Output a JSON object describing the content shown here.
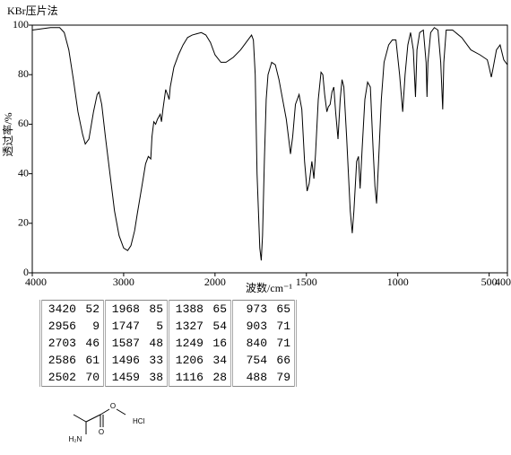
{
  "chart_data": {
    "type": "line",
    "title": "KBr压片法",
    "x_label": "波数/cm⁻¹",
    "y_label": "透过率/%",
    "xlim": [
      4000,
      400
    ],
    "ylim": [
      0,
      100
    ],
    "x_break": 2000,
    "grid": false,
    "color": "#000000",
    "xticks": [
      4000,
      3000,
      2000,
      1500,
      1000,
      500,
      400
    ],
    "yticks": [
      0,
      20,
      40,
      60,
      80,
      100
    ],
    "x": [
      4000,
      3900,
      3800,
      3700,
      3650,
      3600,
      3550,
      3500,
      3450,
      3420,
      3380,
      3330,
      3290,
      3270,
      3240,
      3200,
      3150,
      3100,
      3050,
      3000,
      2956,
      2920,
      2880,
      2850,
      2800,
      2760,
      2730,
      2703,
      2690,
      2670,
      2650,
      2630,
      2600,
      2586,
      2570,
      2540,
      2520,
      2502,
      2490,
      2450,
      2400,
      2350,
      2300,
      2250,
      2200,
      2150,
      2100,
      2050,
      2000,
      1968,
      1940,
      1900,
      1860,
      1830,
      1800,
      1790,
      1780,
      1770,
      1755,
      1747,
      1740,
      1730,
      1720,
      1710,
      1690,
      1670,
      1650,
      1630,
      1610,
      1595,
      1587,
      1575,
      1560,
      1540,
      1525,
      1510,
      1496,
      1485,
      1470,
      1459,
      1450,
      1435,
      1420,
      1410,
      1400,
      1388,
      1380,
      1370,
      1360,
      1350,
      1340,
      1327,
      1315,
      1305,
      1295,
      1280,
      1260,
      1249,
      1240,
      1225,
      1215,
      1206,
      1195,
      1180,
      1165,
      1150,
      1135,
      1125,
      1116,
      1105,
      1090,
      1075,
      1050,
      1030,
      1010,
      990,
      973,
      960,
      945,
      930,
      915,
      903,
      895,
      880,
      860,
      845,
      840,
      835,
      820,
      800,
      780,
      765,
      754,
      748,
      735,
      700,
      650,
      600,
      550,
      510,
      500,
      488,
      480,
      460,
      440,
      420,
      400
    ],
    "values": [
      98,
      98.5,
      99,
      99,
      97,
      90,
      78,
      65,
      56,
      52,
      54,
      65,
      72,
      73,
      68,
      55,
      40,
      25,
      15,
      10,
      9,
      11,
      17,
      24,
      35,
      44,
      47,
      46,
      55,
      61,
      60,
      62,
      64,
      61,
      66,
      74,
      72,
      70,
      75,
      83,
      88,
      92,
      95,
      96,
      96.5,
      97,
      96,
      93,
      88,
      85,
      85,
      87,
      90,
      93,
      96,
      94,
      80,
      40,
      10,
      5,
      15,
      45,
      70,
      80,
      85,
      84,
      78,
      70,
      62,
      53,
      48,
      55,
      68,
      72,
      66,
      45,
      33,
      36,
      45,
      38,
      48,
      70,
      81,
      80,
      72,
      65,
      67,
      68,
      73,
      75,
      65,
      54,
      70,
      78,
      75,
      55,
      25,
      16,
      25,
      45,
      47,
      34,
      50,
      70,
      77,
      75,
      50,
      35,
      28,
      45,
      70,
      85,
      92,
      94,
      94,
      80,
      65,
      80,
      92,
      97,
      90,
      71,
      90,
      97,
      98,
      85,
      71,
      85,
      97,
      99,
      98,
      85,
      66,
      85,
      98,
      98,
      95,
      90,
      88,
      86,
      83,
      79,
      82,
      90,
      92,
      86,
      84
    ]
  },
  "table": {
    "rows": [
      [
        [
          3420,
          52
        ],
        [
          1968,
          85
        ],
        [
          1388,
          65
        ],
        [
          973,
          65
        ]
      ],
      [
        [
          2956,
          9
        ],
        [
          1747,
          5
        ],
        [
          1327,
          54
        ],
        [
          903,
          71
        ]
      ],
      [
        [
          2703,
          46
        ],
        [
          1587,
          48
        ],
        [
          1249,
          16
        ],
        [
          840,
          71
        ]
      ],
      [
        [
          2586,
          61
        ],
        [
          1496,
          33
        ],
        [
          1206,
          34
        ],
        [
          754,
          66
        ]
      ],
      [
        [
          2502,
          70
        ],
        [
          1459,
          38
        ],
        [
          1116,
          28
        ],
        [
          488,
          79
        ]
      ]
    ]
  },
  "structure": {
    "labels": [
      "O",
      "O",
      "H₂N",
      "HCl"
    ]
  }
}
